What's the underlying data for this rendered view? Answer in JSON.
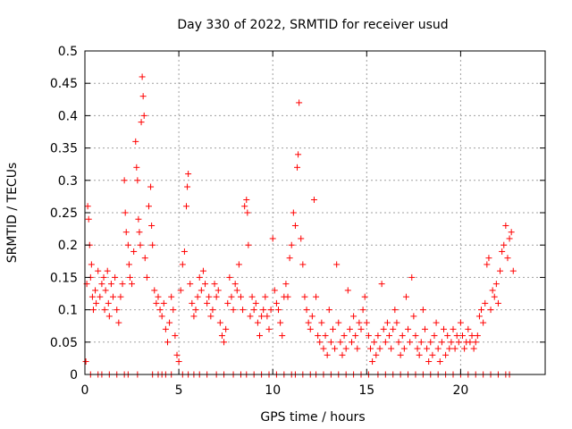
{
  "chart_data": {
    "type": "scatter",
    "title": "Day 330 of 2022, SRMTID for receiver usud",
    "xlabel": "GPS time / hours",
    "ylabel": "SRMTID / TECUs",
    "xlim": [
      0,
      24.5
    ],
    "ylim": [
      0,
      0.5
    ],
    "xticks": [
      0,
      5,
      10,
      15,
      20
    ],
    "xtick_labels": [
      "0",
      "5",
      "10",
      "15",
      "20"
    ],
    "yticks": [
      0,
      0.05,
      0.1,
      0.15,
      0.2,
      0.25,
      0.3,
      0.35,
      0.4,
      0.45,
      0.5
    ],
    "ytick_labels": [
      "0",
      "0.05",
      "0.1",
      "0.15",
      "0.2",
      "0.25",
      "0.3",
      "0.35",
      "0.4",
      "0.45",
      "0.5"
    ],
    "grid": true,
    "marker": "+",
    "color": "#ff0000",
    "series": [
      {
        "name": "SRMTID",
        "points": [
          [
            0.05,
            0.02
          ],
          [
            0.1,
            0.14
          ],
          [
            0.15,
            0.26
          ],
          [
            0.2,
            0.24
          ],
          [
            0.25,
            0.2
          ],
          [
            0.3,
            0.15
          ],
          [
            0.35,
            0.17
          ],
          [
            0.4,
            0.12
          ],
          [
            0.45,
            0.1
          ],
          [
            0.55,
            0.13
          ],
          [
            0.6,
            0.11
          ],
          [
            0.7,
            0.16
          ],
          [
            0.8,
            0.12
          ],
          [
            0.9,
            0.14
          ],
          [
            1.0,
            0.15
          ],
          [
            1.05,
            0.1
          ],
          [
            1.1,
            0.13
          ],
          [
            1.2,
            0.16
          ],
          [
            1.25,
            0.11
          ],
          [
            1.3,
            0.09
          ],
          [
            1.4,
            0.14
          ],
          [
            1.5,
            0.12
          ],
          [
            1.6,
            0.15
          ],
          [
            1.7,
            0.1
          ],
          [
            1.8,
            0.08
          ],
          [
            1.9,
            0.12
          ],
          [
            2.0,
            0.14
          ],
          [
            2.1,
            0.3
          ],
          [
            2.15,
            0.25
          ],
          [
            2.2,
            0.22
          ],
          [
            2.3,
            0.2
          ],
          [
            2.35,
            0.17
          ],
          [
            2.4,
            0.15
          ],
          [
            2.5,
            0.14
          ],
          [
            2.6,
            0.19
          ],
          [
            2.7,
            0.36
          ],
          [
            2.75,
            0.32
          ],
          [
            2.8,
            0.3
          ],
          [
            2.85,
            0.24
          ],
          [
            2.9,
            0.22
          ],
          [
            2.95,
            0.2
          ],
          [
            3.0,
            0.39
          ],
          [
            3.05,
            0.46
          ],
          [
            3.1,
            0.43
          ],
          [
            3.15,
            0.4
          ],
          [
            3.2,
            0.18
          ],
          [
            3.3,
            0.15
          ],
          [
            3.4,
            0.26
          ],
          [
            3.5,
            0.29
          ],
          [
            3.55,
            0.23
          ],
          [
            3.6,
            0.2
          ],
          [
            3.7,
            0.13
          ],
          [
            3.8,
            0.11
          ],
          [
            3.9,
            0.12
          ],
          [
            4.0,
            0.1
          ],
          [
            4.1,
            0.09
          ],
          [
            4.2,
            0.11
          ],
          [
            4.3,
            0.07
          ],
          [
            4.4,
            0.05
          ],
          [
            4.5,
            0.08
          ],
          [
            4.6,
            0.12
          ],
          [
            4.7,
            0.1
          ],
          [
            4.8,
            0.06
          ],
          [
            4.9,
            0.03
          ],
          [
            5.0,
            0.02
          ],
          [
            5.1,
            0.13
          ],
          [
            5.2,
            0.17
          ],
          [
            5.3,
            0.19
          ],
          [
            5.4,
            0.26
          ],
          [
            5.45,
            0.29
          ],
          [
            5.5,
            0.31
          ],
          [
            5.6,
            0.14
          ],
          [
            5.7,
            0.11
          ],
          [
            5.8,
            0.09
          ],
          [
            5.9,
            0.1
          ],
          [
            6.0,
            0.12
          ],
          [
            6.1,
            0.15
          ],
          [
            6.2,
            0.13
          ],
          [
            6.3,
            0.16
          ],
          [
            6.4,
            0.14
          ],
          [
            6.5,
            0.11
          ],
          [
            6.6,
            0.12
          ],
          [
            6.7,
            0.09
          ],
          [
            6.8,
            0.1
          ],
          [
            6.9,
            0.14
          ],
          [
            7.0,
            0.12
          ],
          [
            7.1,
            0.13
          ],
          [
            7.2,
            0.08
          ],
          [
            7.3,
            0.06
          ],
          [
            7.4,
            0.05
          ],
          [
            7.5,
            0.07
          ],
          [
            7.6,
            0.11
          ],
          [
            7.7,
            0.15
          ],
          [
            7.8,
            0.12
          ],
          [
            7.9,
            0.1
          ],
          [
            8.0,
            0.14
          ],
          [
            8.1,
            0.13
          ],
          [
            8.2,
            0.17
          ],
          [
            8.3,
            0.12
          ],
          [
            8.4,
            0.1
          ],
          [
            8.5,
            0.26
          ],
          [
            8.6,
            0.27
          ],
          [
            8.65,
            0.25
          ],
          [
            8.7,
            0.2
          ],
          [
            8.8,
            0.09
          ],
          [
            8.9,
            0.12
          ],
          [
            9.0,
            0.1
          ],
          [
            9.1,
            0.11
          ],
          [
            9.2,
            0.08
          ],
          [
            9.3,
            0.06
          ],
          [
            9.4,
            0.09
          ],
          [
            9.5,
            0.1
          ],
          [
            9.6,
            0.12
          ],
          [
            9.7,
            0.09
          ],
          [
            9.8,
            0.07
          ],
          [
            9.9,
            0.1
          ],
          [
            10.0,
            0.21
          ],
          [
            10.1,
            0.13
          ],
          [
            10.2,
            0.11
          ],
          [
            10.3,
            0.1
          ],
          [
            10.4,
            0.08
          ],
          [
            10.5,
            0.06
          ],
          [
            10.6,
            0.12
          ],
          [
            10.7,
            0.14
          ],
          [
            10.8,
            0.12
          ],
          [
            10.9,
            0.18
          ],
          [
            11.0,
            0.2
          ],
          [
            11.1,
            0.25
          ],
          [
            11.2,
            0.23
          ],
          [
            11.3,
            0.32
          ],
          [
            11.35,
            0.34
          ],
          [
            11.4,
            0.42
          ],
          [
            11.5,
            0.21
          ],
          [
            11.6,
            0.17
          ],
          [
            11.7,
            0.12
          ],
          [
            11.8,
            0.1
          ],
          [
            11.9,
            0.08
          ],
          [
            12.0,
            0.07
          ],
          [
            12.1,
            0.09
          ],
          [
            12.2,
            0.27
          ],
          [
            12.3,
            0.12
          ],
          [
            12.4,
            0.06
          ],
          [
            12.5,
            0.05
          ],
          [
            12.6,
            0.08
          ],
          [
            12.7,
            0.04
          ],
          [
            12.8,
            0.06
          ],
          [
            12.9,
            0.03
          ],
          [
            13.0,
            0.1
          ],
          [
            13.1,
            0.05
          ],
          [
            13.2,
            0.07
          ],
          [
            13.3,
            0.04
          ],
          [
            13.4,
            0.17
          ],
          [
            13.5,
            0.08
          ],
          [
            13.6,
            0.05
          ],
          [
            13.7,
            0.03
          ],
          [
            13.8,
            0.06
          ],
          [
            13.9,
            0.04
          ],
          [
            14.0,
            0.13
          ],
          [
            14.1,
            0.07
          ],
          [
            14.2,
            0.05
          ],
          [
            14.3,
            0.09
          ],
          [
            14.4,
            0.06
          ],
          [
            14.5,
            0.04
          ],
          [
            14.6,
            0.08
          ],
          [
            14.7,
            0.07
          ],
          [
            14.8,
            0.1
          ],
          [
            14.9,
            0.12
          ],
          [
            15.0,
            0.08
          ],
          [
            15.1,
            0.06
          ],
          [
            15.2,
            0.04
          ],
          [
            15.3,
            0.02
          ],
          [
            15.4,
            0.05
          ],
          [
            15.5,
            0.03
          ],
          [
            15.6,
            0.06
          ],
          [
            15.7,
            0.04
          ],
          [
            15.8,
            0.14
          ],
          [
            15.9,
            0.07
          ],
          [
            16.0,
            0.05
          ],
          [
            16.1,
            0.08
          ],
          [
            16.2,
            0.06
          ],
          [
            16.3,
            0.04
          ],
          [
            16.4,
            0.07
          ],
          [
            16.5,
            0.1
          ],
          [
            16.6,
            0.08
          ],
          [
            16.7,
            0.05
          ],
          [
            16.8,
            0.03
          ],
          [
            16.9,
            0.06
          ],
          [
            17.0,
            0.04
          ],
          [
            17.1,
            0.12
          ],
          [
            17.2,
            0.07
          ],
          [
            17.3,
            0.05
          ],
          [
            17.4,
            0.15
          ],
          [
            17.5,
            0.09
          ],
          [
            17.6,
            0.06
          ],
          [
            17.7,
            0.04
          ],
          [
            17.8,
            0.03
          ],
          [
            17.9,
            0.05
          ],
          [
            18.0,
            0.1
          ],
          [
            18.1,
            0.07
          ],
          [
            18.2,
            0.04
          ],
          [
            18.3,
            0.02
          ],
          [
            18.4,
            0.05
          ],
          [
            18.5,
            0.03
          ],
          [
            18.6,
            0.06
          ],
          [
            18.7,
            0.08
          ],
          [
            18.8,
            0.04
          ],
          [
            18.9,
            0.02
          ],
          [
            19.0,
            0.05
          ],
          [
            19.1,
            0.07
          ],
          [
            19.2,
            0.03
          ],
          [
            19.3,
            0.06
          ],
          [
            19.4,
            0.04
          ],
          [
            19.5,
            0.05
          ],
          [
            19.6,
            0.07
          ],
          [
            19.7,
            0.04
          ],
          [
            19.8,
            0.06
          ],
          [
            19.9,
            0.05
          ],
          [
            20.0,
            0.08
          ],
          [
            20.1,
            0.06
          ],
          [
            20.2,
            0.04
          ],
          [
            20.3,
            0.05
          ],
          [
            20.4,
            0.07
          ],
          [
            20.5,
            0.05
          ],
          [
            20.6,
            0.06
          ],
          [
            20.7,
            0.04
          ],
          [
            20.8,
            0.05
          ],
          [
            20.9,
            0.06
          ],
          [
            21.0,
            0.09
          ],
          [
            21.1,
            0.1
          ],
          [
            21.2,
            0.08
          ],
          [
            21.3,
            0.11
          ],
          [
            21.4,
            0.17
          ],
          [
            21.5,
            0.18
          ],
          [
            21.6,
            0.1
          ],
          [
            21.7,
            0.13
          ],
          [
            21.8,
            0.12
          ],
          [
            21.9,
            0.14
          ],
          [
            22.0,
            0.11
          ],
          [
            22.1,
            0.16
          ],
          [
            22.2,
            0.19
          ],
          [
            22.3,
            0.2
          ],
          [
            22.4,
            0.23
          ],
          [
            22.5,
            0.18
          ],
          [
            22.6,
            0.21
          ],
          [
            22.7,
            0.22
          ],
          [
            22.8,
            0.16
          ],
          [
            0.3,
            0.0
          ],
          [
            0.7,
            0.0
          ],
          [
            0.9,
            0.0
          ],
          [
            1.3,
            0.0
          ],
          [
            1.7,
            0.0
          ],
          [
            2.1,
            0.0
          ],
          [
            2.3,
            0.0
          ],
          [
            2.8,
            0.0
          ],
          [
            3.6,
            0.0
          ],
          [
            3.9,
            0.0
          ],
          [
            4.1,
            0.0
          ],
          [
            4.3,
            0.0
          ],
          [
            4.6,
            0.0
          ],
          [
            5.2,
            0.0
          ],
          [
            5.5,
            0.0
          ],
          [
            5.8,
            0.0
          ],
          [
            6.1,
            0.0
          ],
          [
            6.5,
            0.0
          ],
          [
            7.0,
            0.0
          ],
          [
            7.4,
            0.0
          ],
          [
            7.9,
            0.0
          ],
          [
            8.3,
            0.0
          ],
          [
            8.6,
            0.0
          ],
          [
            9.0,
            0.0
          ],
          [
            9.4,
            0.0
          ],
          [
            9.8,
            0.0
          ],
          [
            10.2,
            0.0
          ],
          [
            10.6,
            0.0
          ],
          [
            11.0,
            0.0
          ],
          [
            11.2,
            0.0
          ],
          [
            11.6,
            0.0
          ],
          [
            12.0,
            0.0
          ],
          [
            12.3,
            0.0
          ],
          [
            12.7,
            0.0
          ],
          [
            13.1,
            0.0
          ],
          [
            13.5,
            0.0
          ],
          [
            13.9,
            0.0
          ],
          [
            14.3,
            0.0
          ],
          [
            14.7,
            0.0
          ],
          [
            15.1,
            0.0
          ],
          [
            15.6,
            0.0
          ],
          [
            16.0,
            0.0
          ],
          [
            16.4,
            0.0
          ],
          [
            16.8,
            0.0
          ],
          [
            17.2,
            0.0
          ],
          [
            17.6,
            0.0
          ],
          [
            18.0,
            0.0
          ],
          [
            18.4,
            0.0
          ],
          [
            18.8,
            0.0
          ],
          [
            19.2,
            0.0
          ],
          [
            19.6,
            0.0
          ],
          [
            20.0,
            0.0
          ],
          [
            20.4,
            0.0
          ],
          [
            20.8,
            0.0
          ],
          [
            21.2,
            0.0
          ],
          [
            21.6,
            0.0
          ],
          [
            22.0,
            0.0
          ],
          [
            22.4,
            0.0
          ],
          [
            22.6,
            0.0
          ]
        ]
      }
    ]
  }
}
